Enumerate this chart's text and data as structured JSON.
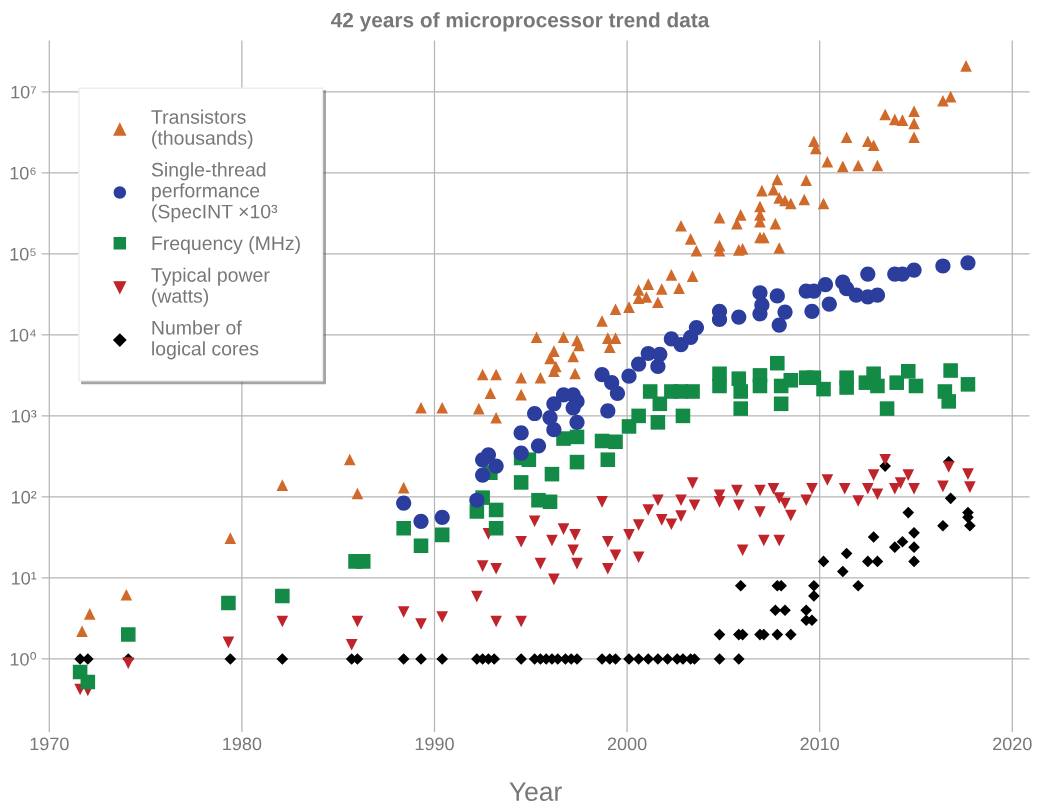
{
  "chart_data": {
    "type": "scatter",
    "title": "42 years of microprocessor trend data",
    "xlabel": "Year",
    "log": "y",
    "grid": true,
    "legend": "top left",
    "xlim": [
      1969.6,
      2020.9
    ],
    "xticks": [
      1970,
      1980,
      1990,
      2000,
      2010,
      2020
    ],
    "ylim": [
      0.125,
      43000000
    ],
    "yticks": [
      {
        "value": 1,
        "label": "10⁰"
      },
      {
        "value": 10,
        "label": "10¹"
      },
      {
        "value": 100,
        "label": "10²"
      },
      {
        "value": 1000,
        "label": "10³"
      },
      {
        "value": 10000,
        "label": "10⁴"
      },
      {
        "value": 100000,
        "label": "10⁵"
      },
      {
        "value": 1000000,
        "label": "10⁶"
      },
      {
        "value": 10000000,
        "label": "10⁷"
      }
    ],
    "series": [
      {
        "name": "Transistors\n(thousands)",
        "color": "#d06a2a",
        "marker": "triangle",
        "x": [
          1971.7,
          1972.1,
          1974.0,
          1979.4,
          1982.1,
          1985.6,
          1986.0,
          1988.4,
          1989.3,
          1990.4,
          1992.3,
          1992.9,
          1992.5,
          1993.2,
          1993.2,
          1994.5,
          1994.5,
          1995.3,
          1995.5,
          1996.0,
          1996.2,
          1996.3,
          1996.2,
          1996.7,
          1997.2,
          1997.3,
          1997.4,
          1997.5,
          1998.7,
          1999.0,
          1999.1,
          1999.4,
          1999.4,
          2000.1,
          2000.6,
          2000.6,
          2001.1,
          2001.0,
          2001.6,
          2001.8,
          2002.3,
          2002.7,
          2003.4,
          2002.8,
          2003.3,
          2003.6,
          2004.8,
          2004.8,
          2004.8,
          2005.7,
          2005.9,
          2005.8,
          2006.0,
          2006.9,
          2006.9,
          2006.9,
          2006.9,
          2007.1,
          2007.0,
          2007.6,
          2007.8,
          2007.7,
          2007.9,
          2007.9,
          2008.2,
          2008.5,
          2009.3,
          2009.2,
          2010.2,
          2009.7,
          2009.8,
          2010.4,
          2011.2,
          2011.4,
          2012.0,
          2012.5,
          2012.8,
          2013.0,
          2013.4,
          2013.9,
          2014.3,
          2014.9,
          2014.9,
          2014.9,
          2016.4,
          2016.8,
          2017.6
        ],
        "values": [
          2.2,
          3.6,
          6.2,
          31,
          140,
          290,
          110,
          130,
          1260,
          1260,
          1230,
          1900,
          3240,
          3240,
          950,
          2960,
          1830,
          9330,
          2960,
          5130,
          6300,
          4070,
          3550,
          9330,
          5400,
          3340,
          8550,
          7420,
          14800,
          9100,
          7050,
          20700,
          9100,
          22000,
          35800,
          28300,
          42300,
          29300,
          25300,
          36800,
          55000,
          37700,
          53000,
          222000,
          153000,
          109000,
          280000,
          126000,
          109000,
          236000,
          303000,
          112000,
          115000,
          384000,
          303000,
          250000,
          159000,
          159000,
          603000,
          619000,
          828000,
          236000,
          118000,
          491000,
          455000,
          418000,
          808000,
          468000,
          418000,
          2450000,
          2000000,
          1370000,
          1200000,
          2750000,
          1230000,
          2450000,
          2190000,
          1230000,
          5250000,
          4570000,
          4470000,
          5750000,
          4070000,
          2750000,
          7760000,
          8710000,
          20900000
        ]
      },
      {
        "name": "Single-thread\nperformance\n(SpecINT ×10³",
        "color": "#2b3d9d",
        "marker": "circle",
        "x": [
          1988.4,
          1989.3,
          1990.4,
          1992.2,
          1992.5,
          1992.5,
          1992.8,
          1993.2,
          1994.5,
          1994.5,
          1995.2,
          1995.4,
          1996.0,
          1996.2,
          1996.2,
          1996.7,
          1997.2,
          1997.4,
          1997.4,
          1997.2,
          1999.0,
          1999.2,
          1999.5,
          1998.7,
          2000.1,
          2000.6,
          2001.1,
          2001.6,
          2001.7,
          2002.3,
          2002.8,
          2003.3,
          2003.6,
          2004.8,
          2004.8,
          2005.8,
          2006.9,
          2006.9,
          2007.0,
          2007.8,
          2007.9,
          2008.2,
          2009.3,
          2009.7,
          2009.6,
          2010.3,
          2010.5,
          2011.2,
          2011.4,
          2011.9,
          2012.5,
          2013.0,
          2012.5,
          2013.9,
          2014.3,
          2014.9,
          2016.4,
          2017.7
        ],
        "values": [
          84,
          50,
          56,
          91,
          186,
          287,
          331,
          240,
          617,
          347,
          1070,
          427,
          955,
          676,
          1410,
          1820,
          1820,
          1510,
          832,
          1260,
          1150,
          2570,
          1900,
          3240,
          3090,
          4360,
          5890,
          4070,
          5750,
          8910,
          7590,
          9330,
          12300,
          19500,
          15500,
          16600,
          18200,
          33100,
          23400,
          30200,
          13200,
          19100,
          34700,
          34700,
          19500,
          41700,
          24000,
          44700,
          37200,
          30900,
          29500,
          30900,
          56200,
          56200,
          56200,
          63100,
          70800,
          77600
        ]
      },
      {
        "name": "Frequency (MHz)",
        "color": "#138a45",
        "marker": "square",
        "x": [
          1971.6,
          1972.0,
          1974.1,
          1979.3,
          1982.1,
          1985.9,
          1986.3,
          1988.4,
          1989.3,
          1990.4,
          1992.2,
          1992.5,
          1992.9,
          1993.2,
          1993.2,
          1994.5,
          1994.5,
          1995.4,
          1994.9,
          1996.0,
          1996.1,
          1996.7,
          1997.4,
          1997.4,
          1998.7,
          1999.0,
          1999.4,
          2000.1,
          2000.6,
          2001.2,
          2001.6,
          2001.7,
          2002.3,
          2002.8,
          2002.9,
          2003.4,
          2004.8,
          2004.8,
          2005.8,
          2005.9,
          2005.9,
          2006.9,
          2006.9,
          2007.8,
          2008.0,
          2008.0,
          2008.5,
          2009.3,
          2009.7,
          2010.2,
          2011.4,
          2011.4,
          2012.4,
          2012.8,
          2013.0,
          2013.5,
          2014.0,
          2014.6,
          2015.0,
          2016.5,
          2016.7,
          2016.8,
          2017.7
        ],
        "values": [
          0.69,
          0.52,
          2.0,
          4.9,
          6.0,
          16,
          16,
          41,
          25,
          34,
          66,
          98,
          199,
          69,
          41,
          151,
          302,
          91,
          288,
          87,
          191,
          525,
          269,
          550,
          490,
          288,
          479,
          741,
          1000,
          2000,
          832,
          1410,
          2000,
          2000,
          1000,
          2000,
          3310,
          2340,
          2880,
          1230,
          2000,
          3160,
          2340,
          4470,
          1410,
          2340,
          2750,
          2960,
          2960,
          2140,
          2960,
          2240,
          2570,
          3310,
          2340,
          1230,
          2570,
          3550,
          2340,
          2000,
          1510,
          3630,
          2450
        ]
      },
      {
        "name": "Typical power\n(watts)",
        "color": "#c0242b",
        "marker": "triangle_down",
        "x": [
          1971.6,
          1972.0,
          1974.1,
          1979.3,
          1982.1,
          1985.7,
          1986.0,
          1988.4,
          1989.3,
          1990.4,
          1992.2,
          1992.5,
          1992.8,
          1993.2,
          1993.2,
          1994.5,
          1994.5,
          1995.2,
          1995.5,
          1996.1,
          1996.2,
          1996.7,
          1997.3,
          1997.4,
          1997.2,
          1998.7,
          1999.0,
          1999.4,
          1999.0,
          2000.1,
          2000.6,
          2000.6,
          2001.1,
          2001.6,
          2001.8,
          2002.3,
          2002.8,
          2002.8,
          2003.4,
          2003.5,
          2004.8,
          2004.8,
          2005.7,
          2005.8,
          2006.0,
          2006.9,
          2006.9,
          2007.1,
          2007.6,
          2007.9,
          2007.9,
          2008.2,
          2008.5,
          2009.3,
          2009.6,
          2010.4,
          2011.3,
          2012.0,
          2012.5,
          2012.8,
          2013.0,
          2013.4,
          2013.9,
          2014.2,
          2014.6,
          2014.9,
          2016.4,
          2016.7,
          2017.7,
          2017.8
        ],
        "values": [
          0.42,
          0.41,
          0.89,
          1.6,
          2.9,
          1.5,
          2.9,
          3.8,
          2.7,
          3.3,
          5.9,
          14,
          35,
          13,
          2.9,
          2.9,
          28,
          50,
          15,
          29,
          9.6,
          40,
          34,
          15,
          22,
          87,
          28,
          19,
          13,
          34,
          45,
          18,
          69,
          91,
          52,
          46,
          58,
          91,
          148,
          79,
          105,
          87,
          120,
          79,
          22,
          120,
          65,
          29,
          126,
          29,
          97,
          83,
          59,
          91,
          126,
          162,
          126,
          89,
          126,
          186,
          108,
          288,
          126,
          148,
          186,
          126,
          135,
          234,
          191,
          132
        ]
      },
      {
        "name": "Number of\nlogical cores",
        "color": "#000000",
        "marker": "diamond",
        "x": [
          1971.6,
          1972.0,
          1974.1,
          1979.4,
          1982.1,
          1985.7,
          1986.0,
          1988.4,
          1989.3,
          1990.4,
          1992.2,
          1992.5,
          1992.8,
          1993.1,
          1994.5,
          1995.2,
          1995.5,
          1995.8,
          1996.1,
          1996.4,
          1996.8,
          1997.1,
          1997.4,
          1998.7,
          1999.1,
          1999.4,
          2000.1,
          2000.6,
          2001.1,
          2001.6,
          2002.1,
          2002.6,
          2002.9,
          2003.3,
          2003.5,
          2004.8,
          2005.8,
          2004.8,
          2005.8,
          2006.0,
          2006.9,
          2007.1,
          2007.8,
          2008.5,
          2005.9,
          2007.8,
          2008.0,
          2007.7,
          2008.2,
          2009.3,
          2009.3,
          2009.6,
          2009.7,
          2009.7,
          2010.2,
          2011.2,
          2011.4,
          2012.0,
          2012.5,
          2012.8,
          2013.0,
          2013.4,
          2013.9,
          2014.3,
          2014.6,
          2014.9,
          2014.9,
          2014.9,
          2016.4,
          2016.7,
          2016.8,
          2017.7,
          2017.8,
          2017.7
        ],
        "values": [
          1,
          1,
          1,
          1,
          1,
          1,
          1,
          1,
          1,
          1,
          1,
          1,
          1,
          1,
          1,
          1,
          1,
          1,
          1,
          1,
          1,
          1,
          1,
          1,
          1,
          1,
          1,
          1,
          1,
          1,
          1,
          1,
          1,
          1,
          1,
          1,
          1,
          2,
          2,
          2,
          2,
          2,
          2,
          2,
          8,
          8,
          8,
          4,
          4,
          4,
          3,
          3,
          8,
          6,
          16,
          12,
          20,
          8,
          16,
          32,
          16,
          240,
          24,
          28,
          64,
          36,
          24,
          16,
          44,
          272,
          96,
          64,
          44,
          56
        ]
      }
    ]
  }
}
